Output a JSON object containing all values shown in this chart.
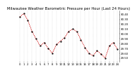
{
  "title": "Milwaukee Weather Barometric Pressure per Hour (Last 24 Hours)",
  "y_values": [
    30.35,
    30.42,
    30.28,
    30.05,
    29.9,
    29.75,
    29.82,
    29.7,
    29.6,
    29.78,
    29.85,
    29.92,
    30.05,
    30.1,
    30.05,
    29.88,
    29.72,
    29.6,
    29.55,
    29.65,
    29.58,
    29.5,
    29.75,
    29.82,
    29.68
  ],
  "ylim_min": 29.42,
  "ylim_max": 30.48,
  "ytick_values": [
    29.5,
    29.6,
    29.7,
    29.8,
    29.9,
    30.0,
    30.1,
    30.2,
    30.3,
    30.4
  ],
  "n_points": 25,
  "line_color": "#cc0000",
  "marker_color": "#000000",
  "bg_color": "#ffffff",
  "grid_color": "#aaaaaa",
  "title_color": "#000000",
  "title_fontsize": 3.8,
  "tick_fontsize": 2.8,
  "label_fontsize": 2.8,
  "linewidth": 0.55,
  "markersize": 1.2,
  "grid_linewidth": 0.25
}
